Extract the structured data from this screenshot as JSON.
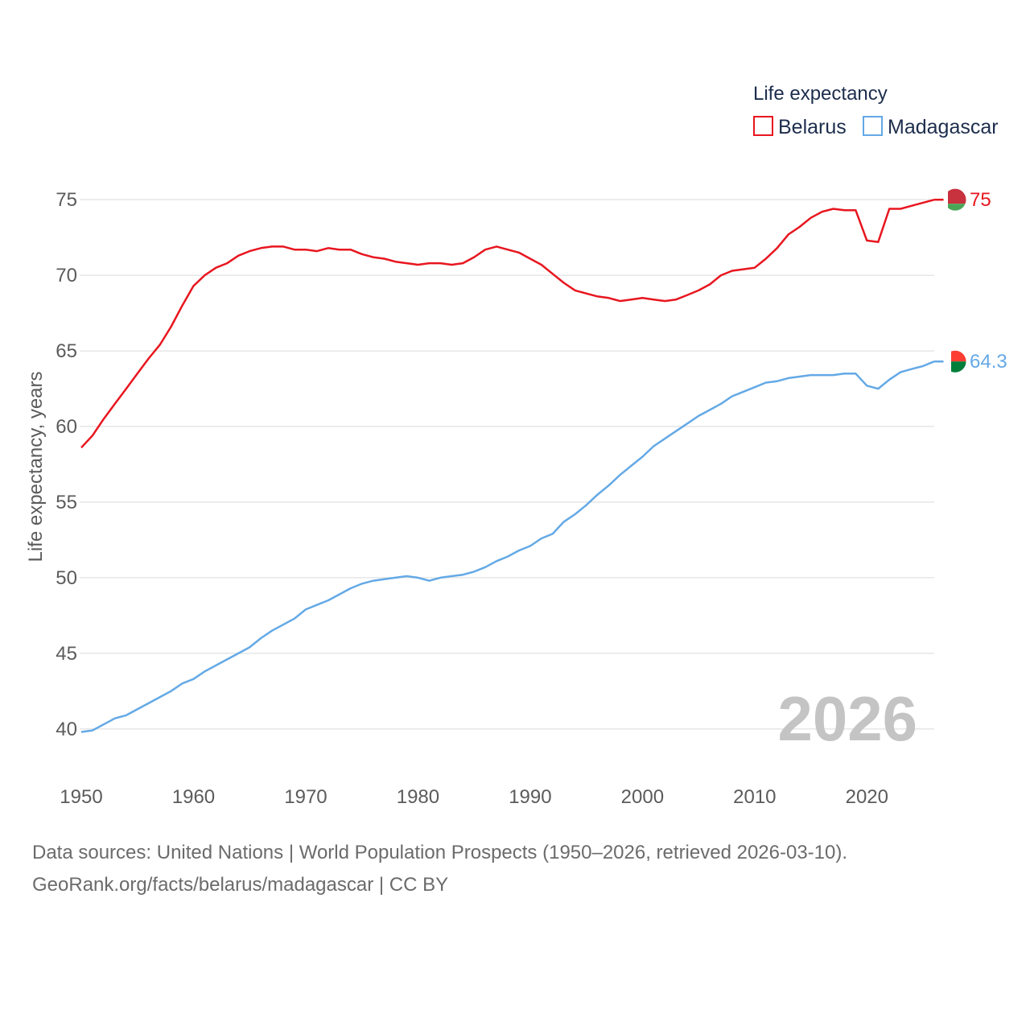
{
  "chart_data": {
    "type": "line",
    "ylabel": "Life expectancy, years",
    "xlabel": "",
    "xlim": [
      1950,
      2026
    ],
    "ylim": [
      38.5,
      76.5
    ],
    "yticks": [
      40,
      45,
      50,
      55,
      60,
      65,
      70,
      75
    ],
    "xticks": [
      1950,
      1960,
      1970,
      1980,
      1990,
      2000,
      2010,
      2020
    ],
    "ytick_labels": [
      "40",
      "45",
      "50",
      "55",
      "60",
      "65",
      "70",
      "75"
    ],
    "xtick_labels": [
      "1950",
      "1960",
      "1970",
      "1980",
      "1990",
      "2000",
      "2010",
      "2020"
    ],
    "grid": true,
    "legend": {
      "title": "Life expectancy",
      "position": "top-right"
    },
    "year_label": "2026",
    "series": [
      {
        "name": "Belarus",
        "color": "#e8161f",
        "end_label": "75",
        "flag": "belarus-flag",
        "x": [
          1950,
          1951,
          1952,
          1953,
          1954,
          1955,
          1956,
          1957,
          1958,
          1959,
          1960,
          1961,
          1962,
          1963,
          1964,
          1965,
          1966,
          1967,
          1968,
          1969,
          1970,
          1971,
          1972,
          1973,
          1974,
          1975,
          1976,
          1977,
          1978,
          1979,
          1980,
          1981,
          1982,
          1983,
          1984,
          1985,
          1986,
          1987,
          1988,
          1989,
          1990,
          1991,
          1992,
          1993,
          1994,
          1995,
          1996,
          1997,
          1998,
          1999,
          2000,
          2001,
          2002,
          2003,
          2004,
          2005,
          2006,
          2007,
          2008,
          2009,
          2010,
          2011,
          2012,
          2013,
          2014,
          2015,
          2016,
          2017,
          2018,
          2019,
          2020,
          2021,
          2022,
          2023,
          2024,
          2025,
          2026
        ],
        "values": [
          58.6,
          59.4,
          60.5,
          61.5,
          62.5,
          63.5,
          64.5,
          65.4,
          66.6,
          68.0,
          69.3,
          70.0,
          70.5,
          70.8,
          71.3,
          71.6,
          71.8,
          71.9,
          71.9,
          71.7,
          71.7,
          71.6,
          71.8,
          71.7,
          71.7,
          71.4,
          71.2,
          71.1,
          70.9,
          70.8,
          70.7,
          70.8,
          70.8,
          70.7,
          70.8,
          71.2,
          71.7,
          71.9,
          71.7,
          71.5,
          71.1,
          70.7,
          70.1,
          69.5,
          69.0,
          68.8,
          68.6,
          68.5,
          68.3,
          68.4,
          68.5,
          68.4,
          68.3,
          68.4,
          68.7,
          69.0,
          69.4,
          70.0,
          70.3,
          70.4,
          70.5,
          71.1,
          71.8,
          72.7,
          73.2,
          73.8,
          74.2,
          74.4,
          74.3,
          74.3,
          72.3,
          72.2,
          74.4,
          74.4,
          74.6,
          74.8,
          75.0
        ]
      },
      {
        "name": "Madagascar",
        "color": "#64a9e6",
        "end_label": "64.3",
        "flag": "madagascar-flag",
        "x": [
          1950,
          1951,
          1952,
          1953,
          1954,
          1955,
          1956,
          1957,
          1958,
          1959,
          1960,
          1961,
          1962,
          1963,
          1964,
          1965,
          1966,
          1967,
          1968,
          1969,
          1970,
          1971,
          1972,
          1973,
          1974,
          1975,
          1976,
          1977,
          1978,
          1979,
          1980,
          1981,
          1982,
          1983,
          1984,
          1985,
          1986,
          1987,
          1988,
          1989,
          1990,
          1991,
          1992,
          1993,
          1994,
          1995,
          1996,
          1997,
          1998,
          1999,
          2000,
          2001,
          2002,
          2003,
          2004,
          2005,
          2006,
          2007,
          2008,
          2009,
          2010,
          2011,
          2012,
          2013,
          2014,
          2015,
          2016,
          2017,
          2018,
          2019,
          2020,
          2021,
          2022,
          2023,
          2024,
          2025,
          2026
        ],
        "values": [
          39.8,
          39.9,
          40.3,
          40.7,
          40.9,
          41.3,
          41.7,
          42.1,
          42.5,
          43.0,
          43.3,
          43.8,
          44.2,
          44.6,
          45.0,
          45.4,
          46.0,
          46.5,
          46.9,
          47.3,
          47.9,
          48.2,
          48.5,
          48.9,
          49.3,
          49.6,
          49.8,
          49.9,
          50.0,
          50.1,
          50.0,
          49.8,
          50.0,
          50.1,
          50.2,
          50.4,
          50.7,
          51.1,
          51.4,
          51.8,
          52.1,
          52.6,
          52.9,
          53.7,
          54.2,
          54.8,
          55.5,
          56.1,
          56.8,
          57.4,
          58.0,
          58.7,
          59.2,
          59.7,
          60.2,
          60.7,
          61.1,
          61.5,
          62.0,
          62.3,
          62.6,
          62.9,
          63.0,
          63.2,
          63.3,
          63.4,
          63.4,
          63.4,
          63.5,
          63.5,
          62.7,
          62.5,
          63.1,
          63.6,
          63.8,
          64.0,
          64.3
        ]
      }
    ]
  },
  "footer": {
    "line1": "Data sources: United Nations | World Population Prospects (1950–2026, retrieved 2026-03-10).",
    "line2": "GeoRank.org/facts/belarus/madagascar | CC BY"
  }
}
